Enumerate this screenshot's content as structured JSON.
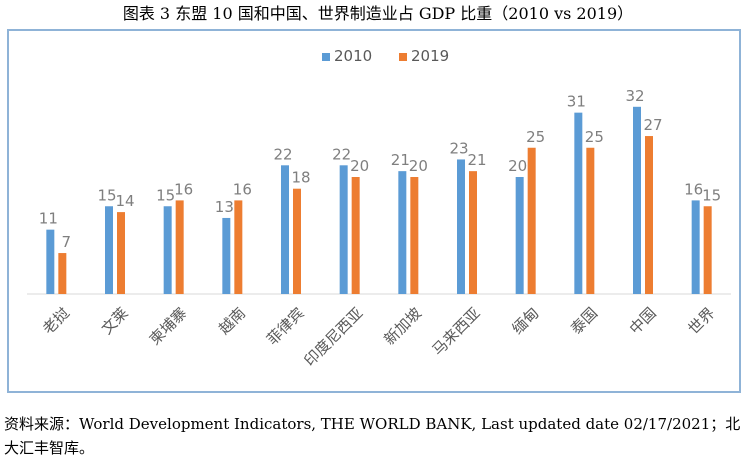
{
  "figure_title": "图表  3    东盟 10 国和中国、世界制造业占 GDP 比重（2010 vs 2019）",
  "source_note": "资料来源：World Development Indicators, THE WORLD BANK, Last updated date 02/17/2021；北大汇丰智库。",
  "chart_data": {
    "type": "bar",
    "categories": [
      "老挝",
      "文莱",
      "柬埔寨",
      "越南",
      "菲律宾",
      "印度尼西亚",
      "新加坡",
      "马来西亚",
      "缅甸",
      "泰国",
      "中国",
      "世界"
    ],
    "series": [
      {
        "name": "2010",
        "values": [
          11,
          15,
          15,
          13,
          22,
          22,
          21,
          23,
          20,
          31,
          32,
          16
        ],
        "color": "#5b9bd5"
      },
      {
        "name": "2019",
        "values": [
          7,
          14,
          16,
          16,
          18,
          20,
          20,
          21,
          25,
          25,
          27,
          15
        ],
        "color": "#ed7d31"
      }
    ],
    "label_color": "#7f7f7f",
    "axis_color": "#d9d9d9",
    "ylim": [
      0,
      35
    ],
    "grid": false,
    "legend": "top-center",
    "xlabel": "",
    "ylabel": "",
    "title": ""
  }
}
